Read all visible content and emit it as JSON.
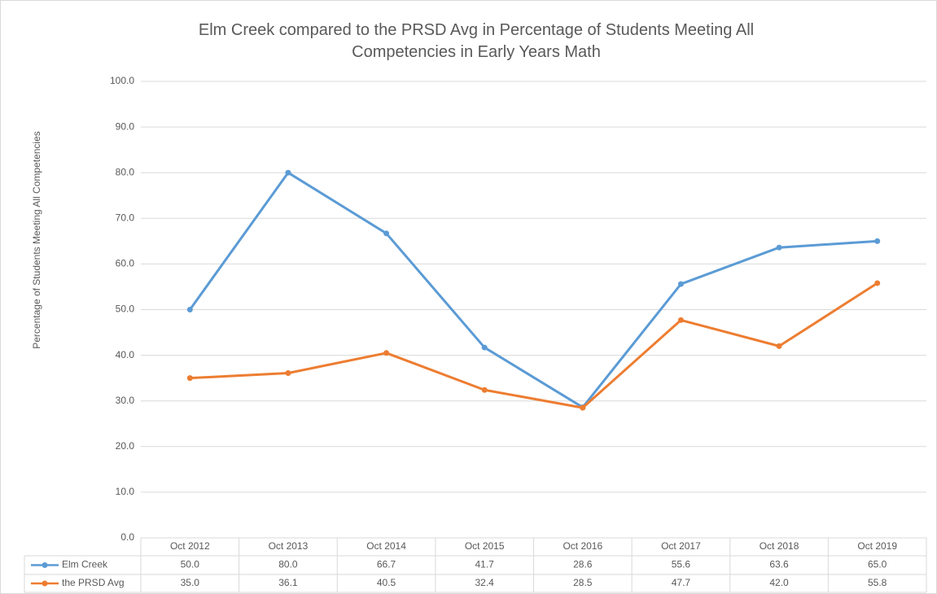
{
  "chart_data": {
    "type": "line",
    "title": "Elm Creek compared to the PRSD Avg in Percentage of Students Meeting All Competencies in Early Years Math",
    "y_axis_label": "Percentage of Students Meeting All Competencies",
    "categories": [
      "Oct 2012",
      "Oct 2013",
      "Oct 2014",
      "Oct 2015",
      "Oct 2016",
      "Oct 2017",
      "Oct 2018",
      "Oct 2019"
    ],
    "series": [
      {
        "name": "Elm Creek",
        "color": "#5b9bd5",
        "values": [
          50.0,
          80.0,
          66.7,
          41.7,
          28.6,
          55.6,
          63.6,
          65.0
        ],
        "value_labels": [
          "50.0",
          "80.0",
          "66.7",
          "41.7",
          "28.6",
          "55.6",
          "63.6",
          "65.0"
        ]
      },
      {
        "name": "the PRSD Avg",
        "color": "#ed7d31",
        "values": [
          35.0,
          36.1,
          40.5,
          32.4,
          28.5,
          47.7,
          42.0,
          55.8
        ],
        "value_labels": [
          "35.0",
          "36.1",
          "40.5",
          "32.4",
          "28.5",
          "47.7",
          "42.0",
          "55.8"
        ]
      }
    ],
    "ylim": [
      0,
      100
    ],
    "yticks": [
      {
        "value": 0,
        "label": "0.0"
      },
      {
        "value": 10,
        "label": "10.0"
      },
      {
        "value": 20,
        "label": "20.0"
      },
      {
        "value": 30,
        "label": "30.0"
      },
      {
        "value": 40,
        "label": "40.0"
      },
      {
        "value": 50,
        "label": "50.0"
      },
      {
        "value": 60,
        "label": "60.0"
      },
      {
        "value": 70,
        "label": "70.0"
      },
      {
        "value": 80,
        "label": "80.0"
      },
      {
        "value": 90,
        "label": "90.0"
      },
      {
        "value": 100,
        "label": "100.0"
      }
    ],
    "grid": true
  }
}
